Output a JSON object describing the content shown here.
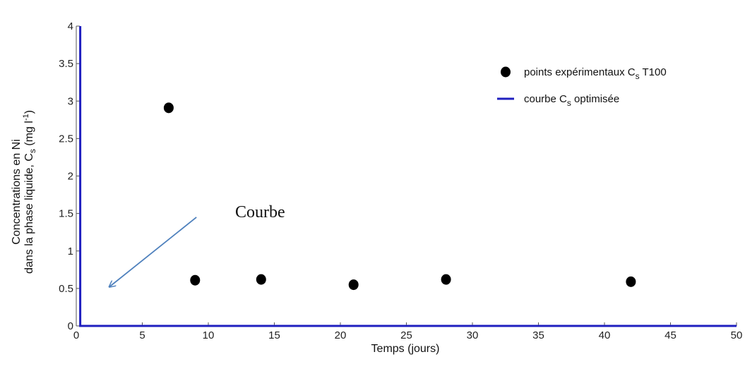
{
  "chart_data": {
    "type": "scatter",
    "xlabel": "Temps (jours)",
    "ylabel_line1": "Concentrations en Ni",
    "ylabel_line2_prefix": "dans la phase liquide, C",
    "ylabel_line2_sub": "s",
    "ylabel_line2_suffix": " (mg l",
    "ylabel_line2_sup": "-1",
    "ylabel_line2_end": ")",
    "xlim": [
      0,
      50
    ],
    "ylim": [
      0,
      4
    ],
    "xticks": [
      0,
      5,
      10,
      15,
      20,
      25,
      30,
      35,
      40,
      45,
      50
    ],
    "yticks": [
      0,
      0.5,
      1,
      1.5,
      2,
      2.5,
      3,
      3.5,
      4
    ],
    "xtick_labels": [
      "0",
      "5",
      "10",
      "15",
      "20",
      "25",
      "30",
      "35",
      "40",
      "45",
      "50"
    ],
    "ytick_labels": [
      "0",
      "0.5",
      "1",
      "1.5",
      "2",
      "2.5",
      "3",
      "3.5",
      "4"
    ],
    "series": [
      {
        "kind": "scatter",
        "legend_prefix": "points expérimentaux C",
        "legend_sub": "s",
        "legend_suffix": " T100",
        "color": "#000000",
        "x": [
          7,
          9,
          14,
          21,
          28,
          42
        ],
        "y": [
          2.91,
          0.61,
          0.62,
          0.55,
          0.62,
          0.59
        ]
      },
      {
        "kind": "line",
        "legend_prefix": "courbe C",
        "legend_sub": "s",
        "legend_suffix": " optimisée",
        "color": "#1f1fbf",
        "x": [
          0.3,
          0.3,
          50
        ],
        "y": [
          4,
          0,
          0
        ]
      }
    ],
    "legend_position": "top-right",
    "annotation": {
      "text": "Courbe",
      "arrow_color": "#4f81bd",
      "arrow_from": [
        9.1,
        1.45
      ],
      "arrow_to": [
        2.5,
        0.52
      ]
    }
  }
}
